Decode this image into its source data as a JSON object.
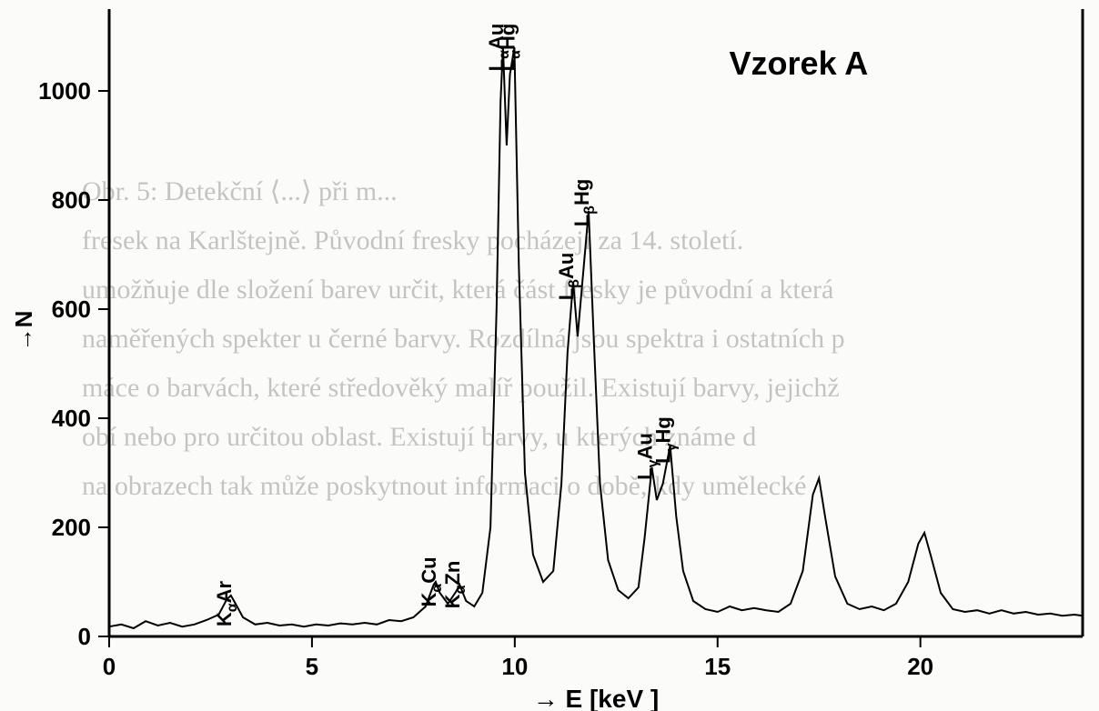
{
  "chart": {
    "type": "line-spectrum",
    "title": "Vzorek A",
    "title_fontsize": 36,
    "title_fontweight": "bold",
    "title_position_keV": 17.0,
    "title_position_N": 1030,
    "xlabel": "→ E [keV ]",
    "xlabel_fontsize": 28,
    "ylabel": "→N",
    "ylabel_fontsize": 26,
    "xlim": [
      0,
      24
    ],
    "ylim": [
      0,
      1150
    ],
    "xtick_values": [
      0,
      5,
      10,
      15,
      20
    ],
    "ytick_values": [
      0,
      200,
      400,
      600,
      800,
      1000
    ],
    "line_color": "#000000",
    "line_width": 2,
    "axis_color": "#000000",
    "axis_width": 3,
    "background_color": "#ffffff",
    "noise_overlay_color": "#f4f4f0",
    "tick_label_fontsize": 26,
    "tick_label_fontweight": "bold",
    "peak_label_fontsize": 22,
    "peak_labels": [
      {
        "text": "KαAr",
        "x_keV": 3.0,
        "y_N": 60,
        "rotation": -90
      },
      {
        "text": "KαCu",
        "x_keV": 8.05,
        "y_N": 100,
        "rotation": -90
      },
      {
        "text": "KαZn",
        "x_keV": 8.64,
        "y_N": 95,
        "rotation": -90
      },
      {
        "text": "LαAu",
        "x_keV": 9.71,
        "y_N": 1080,
        "rotation": -90
      },
      {
        "text": "LαHg",
        "x_keV": 9.99,
        "y_N": 1080,
        "rotation": -90
      },
      {
        "text": "LβAu",
        "x_keV": 11.44,
        "y_N": 660,
        "rotation": -90
      },
      {
        "text": "LβHg",
        "x_keV": 11.82,
        "y_N": 795,
        "rotation": -90
      },
      {
        "text": "LγAu",
        "x_keV": 13.38,
        "y_N": 330,
        "rotation": -90
      },
      {
        "text": "LγHg",
        "x_keV": 13.83,
        "y_N": 360,
        "rotation": -90
      }
    ],
    "spectrum_points": [
      [
        0.0,
        18
      ],
      [
        0.3,
        22
      ],
      [
        0.6,
        15
      ],
      [
        0.9,
        28
      ],
      [
        1.2,
        20
      ],
      [
        1.5,
        25
      ],
      [
        1.8,
        18
      ],
      [
        2.1,
        22
      ],
      [
        2.4,
        30
      ],
      [
        2.7,
        40
      ],
      [
        2.9,
        68
      ],
      [
        3.0,
        75
      ],
      [
        3.1,
        62
      ],
      [
        3.3,
        35
      ],
      [
        3.6,
        22
      ],
      [
        3.9,
        25
      ],
      [
        4.2,
        20
      ],
      [
        4.5,
        22
      ],
      [
        4.8,
        18
      ],
      [
        5.1,
        22
      ],
      [
        5.4,
        20
      ],
      [
        5.7,
        24
      ],
      [
        6.0,
        22
      ],
      [
        6.3,
        25
      ],
      [
        6.6,
        22
      ],
      [
        6.9,
        30
      ],
      [
        7.2,
        28
      ],
      [
        7.5,
        35
      ],
      [
        7.8,
        55
      ],
      [
        8.0,
        95
      ],
      [
        8.05,
        100
      ],
      [
        8.15,
        80
      ],
      [
        8.35,
        60
      ],
      [
        8.55,
        82
      ],
      [
        8.64,
        95
      ],
      [
        8.8,
        65
      ],
      [
        9.0,
        55
      ],
      [
        9.2,
        80
      ],
      [
        9.4,
        200
      ],
      [
        9.55,
        600
      ],
      [
        9.65,
        980
      ],
      [
        9.71,
        1080
      ],
      [
        9.8,
        900
      ],
      [
        9.88,
        1030
      ],
      [
        9.99,
        1080
      ],
      [
        10.1,
        680
      ],
      [
        10.25,
        300
      ],
      [
        10.45,
        150
      ],
      [
        10.7,
        100
      ],
      [
        10.95,
        120
      ],
      [
        11.15,
        280
      ],
      [
        11.3,
        520
      ],
      [
        11.44,
        650
      ],
      [
        11.55,
        550
      ],
      [
        11.68,
        660
      ],
      [
        11.82,
        780
      ],
      [
        11.95,
        540
      ],
      [
        12.1,
        280
      ],
      [
        12.3,
        140
      ],
      [
        12.55,
        85
      ],
      [
        12.8,
        70
      ],
      [
        13.05,
        90
      ],
      [
        13.2,
        180
      ],
      [
        13.38,
        310
      ],
      [
        13.5,
        250
      ],
      [
        13.65,
        280
      ],
      [
        13.83,
        350
      ],
      [
        13.98,
        220
      ],
      [
        14.15,
        120
      ],
      [
        14.4,
        65
      ],
      [
        14.7,
        50
      ],
      [
        15.0,
        45
      ],
      [
        15.3,
        55
      ],
      [
        15.6,
        48
      ],
      [
        15.9,
        52
      ],
      [
        16.2,
        48
      ],
      [
        16.5,
        45
      ],
      [
        16.8,
        60
      ],
      [
        17.1,
        120
      ],
      [
        17.35,
        260
      ],
      [
        17.5,
        290
      ],
      [
        17.65,
        220
      ],
      [
        17.9,
        110
      ],
      [
        18.2,
        60
      ],
      [
        18.5,
        50
      ],
      [
        18.8,
        55
      ],
      [
        19.1,
        48
      ],
      [
        19.4,
        60
      ],
      [
        19.7,
        100
      ],
      [
        19.95,
        170
      ],
      [
        20.1,
        190
      ],
      [
        20.25,
        150
      ],
      [
        20.5,
        80
      ],
      [
        20.8,
        50
      ],
      [
        21.1,
        45
      ],
      [
        21.4,
        48
      ],
      [
        21.7,
        42
      ],
      [
        22.0,
        48
      ],
      [
        22.3,
        42
      ],
      [
        22.6,
        45
      ],
      [
        22.9,
        40
      ],
      [
        23.2,
        42
      ],
      [
        23.5,
        38
      ],
      [
        23.8,
        40
      ],
      [
        24.0,
        38
      ]
    ]
  },
  "ghost_text_lines": [
    "Obr. 5: Detekční ⟨...⟩ při m...",
    "fresek na Karlštejně. Původní fresky pocházejí za 14. století.",
    "umožňuje dle složení barev určit, která část fresky je původní a která",
    "naměřených spekter u černé barvy. Rozdílná jsou spektra i ostatních p",
    "máce o barvách, které středověký malíř použil. Existují barvy, jejichž",
    "obí nebo pro určitou oblast. Existují barvy, u kterých známe d",
    "na obrazech tak může poskytnout informaci o době, kdy umělecké"
  ]
}
